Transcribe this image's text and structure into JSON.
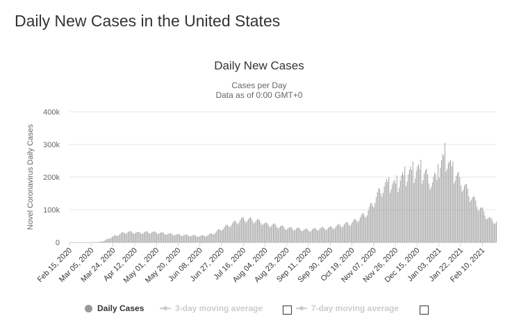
{
  "page": {
    "title": "Daily New Cases in the United States"
  },
  "colors": {
    "bar": "#999999",
    "grid": "#e6e6e6",
    "axis": "#ccd6eb",
    "text": "#333333",
    "inactive": "#cccccc"
  },
  "chart_data": {
    "type": "bar",
    "title": "Daily New Cases",
    "subtitle_lines": [
      "Cases per Day",
      "Data as of 0:00 GMT+0"
    ],
    "ylabel": "Novel Coronavirus Daily Cases",
    "xlabel": "",
    "ylim": [
      0,
      400000
    ],
    "yticks": [
      {
        "value": 0,
        "label": "0"
      },
      {
        "value": 100000,
        "label": "100k"
      },
      {
        "value": 200000,
        "label": "200k"
      },
      {
        "value": 300000,
        "label": "300k"
      },
      {
        "value": 400000,
        "label": "400k"
      }
    ],
    "x_range": [
      "2020-02-15",
      "2021-02-22"
    ],
    "xticks": [
      {
        "date": "2020-02-15",
        "label": "Feb 15, 2020"
      },
      {
        "date": "2020-03-05",
        "label": "Mar 05, 2020"
      },
      {
        "date": "2020-03-24",
        "label": "Mar 24, 2020"
      },
      {
        "date": "2020-04-12",
        "label": "Apr 12, 2020"
      },
      {
        "date": "2020-05-01",
        "label": "May 01, 2020"
      },
      {
        "date": "2020-05-20",
        "label": "May 20, 2020"
      },
      {
        "date": "2020-06-08",
        "label": "Jun 08, 2020"
      },
      {
        "date": "2020-06-27",
        "label": "Jun 27, 2020"
      },
      {
        "date": "2020-07-16",
        "label": "Jul 16, 2020"
      },
      {
        "date": "2020-08-04",
        "label": "Aug 04, 2020"
      },
      {
        "date": "2020-08-23",
        "label": "Aug 23, 2020"
      },
      {
        "date": "2020-09-11",
        "label": "Sep 11, 2020"
      },
      {
        "date": "2020-09-30",
        "label": "Sep 30, 2020"
      },
      {
        "date": "2020-10-19",
        "label": "Oct 19, 2020"
      },
      {
        "date": "2020-11-07",
        "label": "Nov 07, 2020"
      },
      {
        "date": "2020-11-26",
        "label": "Nov 26, 2020"
      },
      {
        "date": "2020-12-15",
        "label": "Dec 15, 2020"
      },
      {
        "date": "2021-01-03",
        "label": "Jan 03, 2021"
      },
      {
        "date": "2021-01-22",
        "label": "Jan 22, 2021"
      },
      {
        "date": "2021-02-10",
        "label": "Feb 10, 2021"
      }
    ],
    "series": [
      {
        "name": "Daily Cases",
        "trend_points": [
          [
            "2020-02-15",
            0
          ],
          [
            "2020-02-29",
            0
          ],
          [
            "2020-03-05",
            200
          ],
          [
            "2020-03-10",
            800
          ],
          [
            "2020-03-15",
            3000
          ],
          [
            "2020-03-20",
            12000
          ],
          [
            "2020-03-24",
            18000
          ],
          [
            "2020-03-28",
            23000
          ],
          [
            "2020-04-01",
            28000
          ],
          [
            "2020-04-05",
            31000
          ],
          [
            "2020-04-10",
            31000
          ],
          [
            "2020-04-15",
            29000
          ],
          [
            "2020-04-24",
            31000
          ],
          [
            "2020-05-01",
            30000
          ],
          [
            "2020-05-10",
            26000
          ],
          [
            "2020-05-20",
            23000
          ],
          [
            "2020-05-31",
            21000
          ],
          [
            "2020-06-08",
            19000
          ],
          [
            "2020-06-15",
            22000
          ],
          [
            "2020-06-20",
            28000
          ],
          [
            "2020-06-27",
            42000
          ],
          [
            "2020-07-03",
            52000
          ],
          [
            "2020-07-10",
            63000
          ],
          [
            "2020-07-16",
            71000
          ],
          [
            "2020-07-24",
            68000
          ],
          [
            "2020-08-01",
            62000
          ],
          [
            "2020-08-04",
            55000
          ],
          [
            "2020-08-12",
            52000
          ],
          [
            "2020-08-23",
            43000
          ],
          [
            "2020-09-01",
            41000
          ],
          [
            "2020-09-11",
            37000
          ],
          [
            "2020-09-20",
            42000
          ],
          [
            "2020-09-30",
            44000
          ],
          [
            "2020-10-10",
            53000
          ],
          [
            "2020-10-19",
            60000
          ],
          [
            "2020-10-26",
            75000
          ],
          [
            "2020-11-01",
            90000
          ],
          [
            "2020-11-07",
            125000
          ],
          [
            "2020-11-13",
            160000
          ],
          [
            "2020-11-20",
            178000
          ],
          [
            "2020-11-26",
            170000
          ],
          [
            "2020-12-01",
            190000
          ],
          [
            "2020-12-07",
            205000
          ],
          [
            "2020-12-15",
            215000
          ],
          [
            "2020-12-22",
            205000
          ],
          [
            "2020-12-28",
            180000
          ],
          [
            "2021-01-03",
            215000
          ],
          [
            "2021-01-08",
            260000
          ],
          [
            "2021-01-12",
            230000
          ],
          [
            "2021-01-18",
            200000
          ],
          [
            "2021-01-22",
            185000
          ],
          [
            "2021-01-28",
            155000
          ],
          [
            "2021-02-03",
            125000
          ],
          [
            "2021-02-10",
            95000
          ],
          [
            "2021-02-16",
            70000
          ],
          [
            "2021-02-22",
            62000
          ]
        ],
        "spikes": [
          [
            "2020-11-20",
            200000
          ],
          [
            "2020-11-27",
            205000
          ],
          [
            "2020-12-04",
            233000
          ],
          [
            "2020-12-11",
            248000
          ],
          [
            "2020-12-18",
            253000
          ],
          [
            "2021-01-02",
            240000
          ],
          [
            "2021-01-08",
            305000
          ],
          [
            "2021-01-15",
            248000
          ]
        ]
      }
    ],
    "legend": [
      {
        "name": "Daily Cases",
        "active": true
      },
      {
        "name": "3-day moving average",
        "active": false
      },
      {
        "name": "7-day moving average",
        "active": false
      }
    ],
    "grid": true,
    "legend_position": "bottom"
  }
}
